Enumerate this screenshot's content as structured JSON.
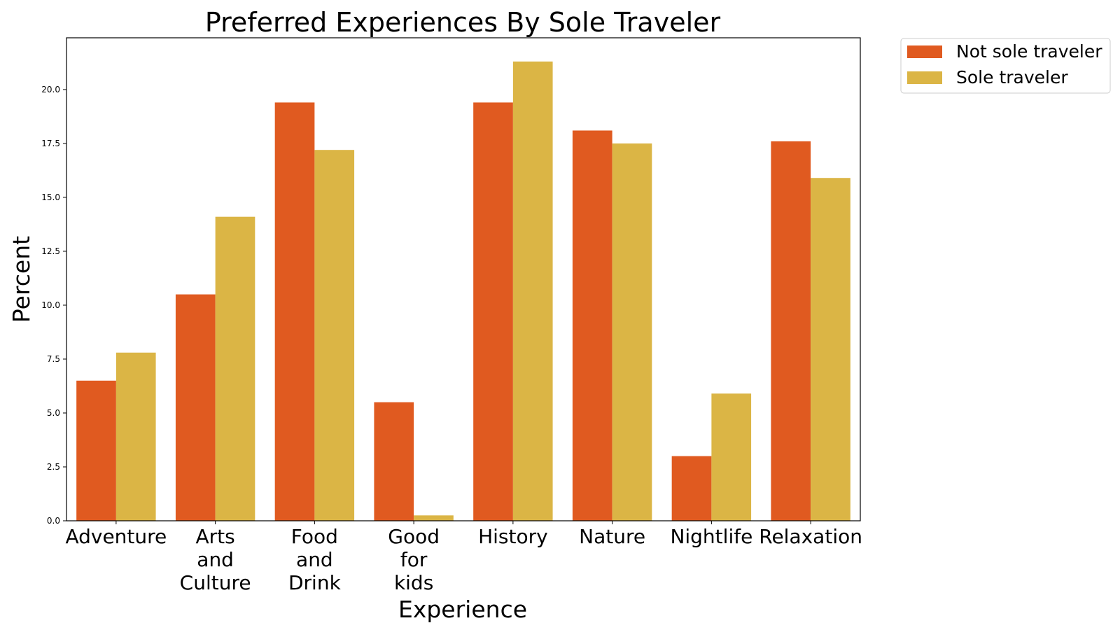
{
  "chart_data": {
    "type": "bar",
    "title": "Preferred Experiences By Sole Traveler",
    "xlabel": "Experience",
    "ylabel": "Percent",
    "categories": [
      [
        "Adventure"
      ],
      [
        "Arts",
        "and",
        "Culture"
      ],
      [
        "Food",
        "and",
        "Drink"
      ],
      [
        "Good",
        "for",
        "kids"
      ],
      [
        "History"
      ],
      [
        "Nature"
      ],
      [
        "Nightlife"
      ],
      [
        "Relaxation"
      ]
    ],
    "series": [
      {
        "name": "Not sole traveler",
        "color": "#E05A20",
        "values": [
          6.5,
          10.5,
          19.4,
          5.5,
          19.4,
          18.1,
          3.0,
          17.6
        ]
      },
      {
        "name": "Sole traveler",
        "color": "#DBB545",
        "values": [
          7.8,
          14.1,
          17.2,
          0.25,
          21.3,
          17.5,
          5.9,
          15.9
        ]
      }
    ],
    "ylim": [
      0,
      22.4
    ],
    "yticks": [
      "0.0",
      "2.5",
      "5.0",
      "7.5",
      "10.0",
      "12.5",
      "15.0",
      "17.5",
      "20.0"
    ],
    "grid": false,
    "legend_placement": "outside-top-right"
  }
}
